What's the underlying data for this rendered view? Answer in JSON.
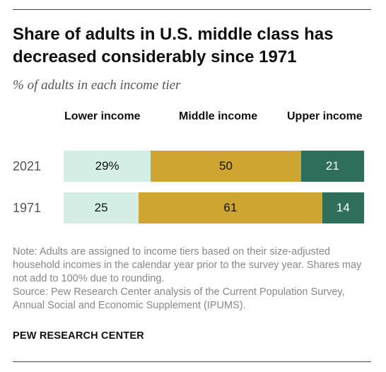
{
  "colors": {
    "lower": "#d4eee6",
    "middle": "#cfa532",
    "upper": "#2f6e5a"
  },
  "header": {
    "title": "Share of adults in U.S. middle class has decreased considerably since 1971",
    "subtitle": "% of adults in each income tier"
  },
  "chart_data": {
    "type": "bar",
    "orientation": "horizontal",
    "stacked": true,
    "title": "Share of adults in U.S. middle class has decreased considerably since 1971",
    "subtitle": "% of adults in each income tier",
    "categories": [
      "2021",
      "1971"
    ],
    "series": [
      {
        "name": "Lower income",
        "values": [
          29,
          25
        ],
        "labels": [
          "29%",
          "25"
        ],
        "color": "#d4eee6"
      },
      {
        "name": "Middle income",
        "values": [
          50,
          61
        ],
        "labels": [
          "50",
          "61"
        ],
        "color": "#cfa532"
      },
      {
        "name": "Upper income",
        "values": [
          21,
          14
        ],
        "labels": [
          "21",
          "14"
        ],
        "color": "#2f6e5a"
      }
    ],
    "legend_placement": "top",
    "grid": false
  },
  "footer": {
    "note": "Note: Adults are assigned to income tiers based on their size-adjusted household incomes in the calendar year prior to the survey year. Shares may not add to 100% due to rounding.",
    "source": "Source: Pew Research Center analysis of the Current Population Survey, Annual Social and Economic Supplement (IPUMS).",
    "brand": "PEW RESEARCH CENTER"
  }
}
